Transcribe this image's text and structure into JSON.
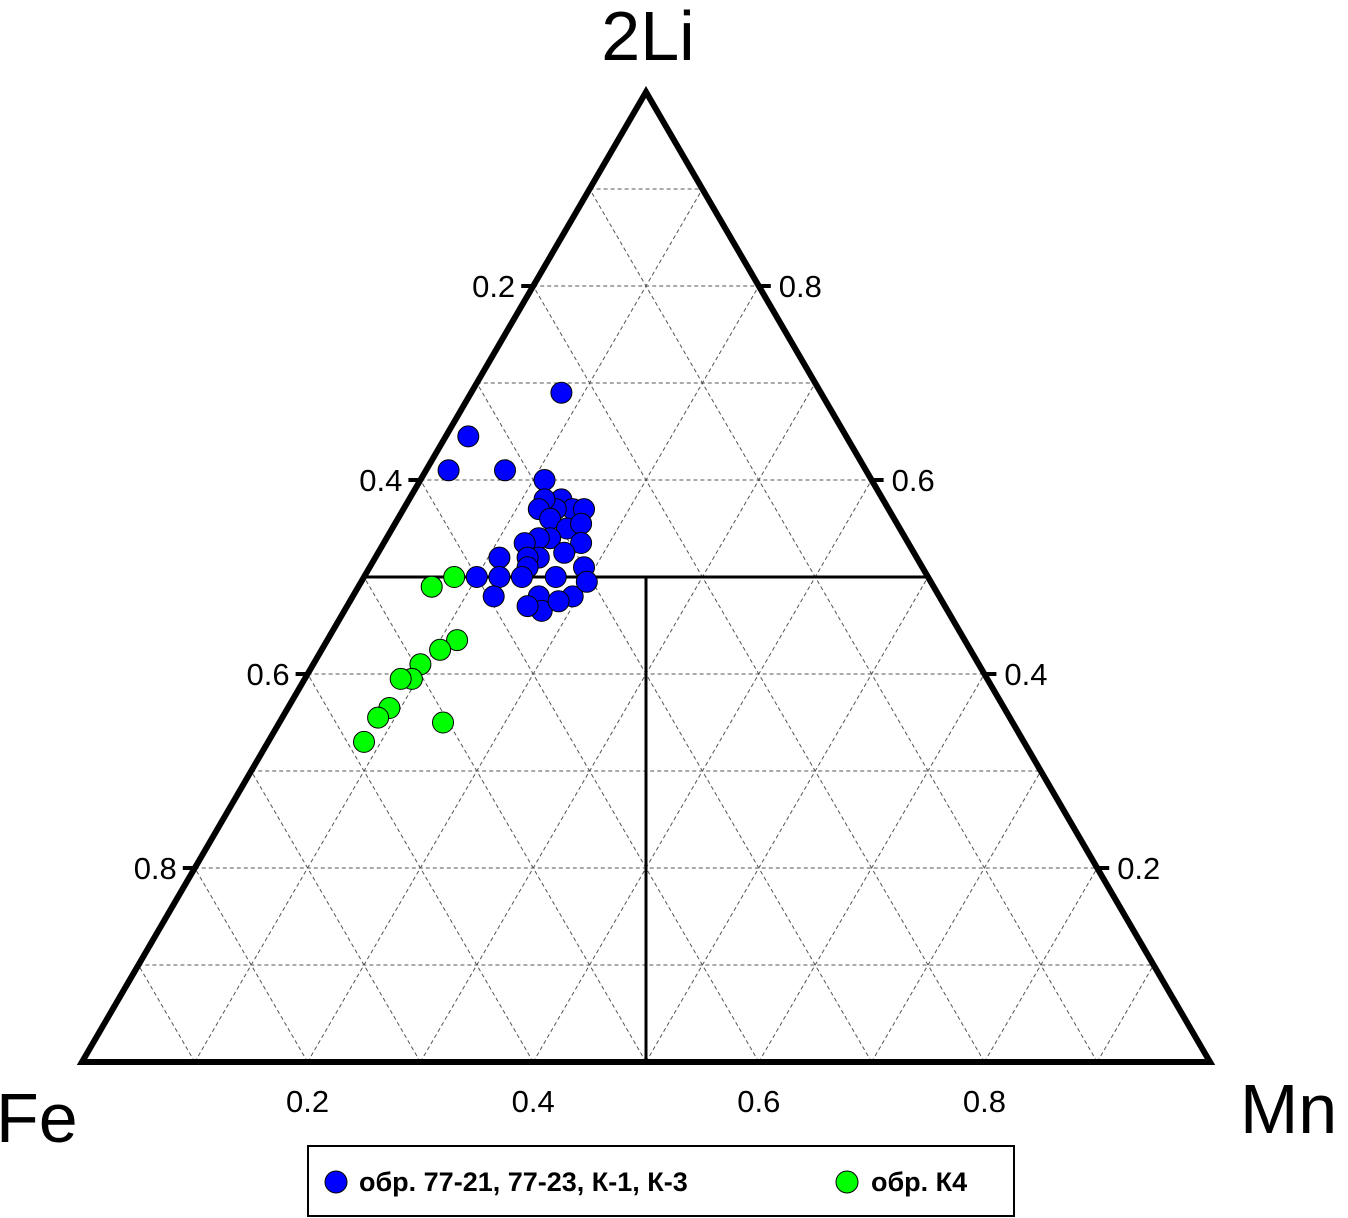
{
  "chart_data": {
    "type": "ternary-scatter",
    "vertices": {
      "top": "2Li",
      "left": "Fe",
      "right": "Mn"
    },
    "grid": true,
    "grid_step": 0.1,
    "tick_labels": [
      "0.2",
      "0.4",
      "0.6",
      "0.8"
    ],
    "divider_lines": [
      {
        "description": "constant 2Li",
        "value": 0.5
      },
      {
        "description": "Fe = Mn split",
        "value": 0.5
      }
    ],
    "legend_position": "bottom-center",
    "series": [
      {
        "name": "обр. 77-21, 77-23, К-1, К-3",
        "color": "#0000ff",
        "points": [
          {
            "fe": 0.23,
            "mn": 0.08,
            "li": 0.69
          },
          {
            "fe": 0.37,
            "mn": 0.02,
            "li": 0.61
          },
          {
            "fe": 0.32,
            "mn": 0.07,
            "li": 0.61
          },
          {
            "fe": 0.335,
            "mn": 0.02,
            "li": 0.645
          },
          {
            "fe": 0.29,
            "mn": 0.11,
            "li": 0.6
          },
          {
            "fe": 0.285,
            "mn": 0.135,
            "li": 0.58
          },
          {
            "fe": 0.28,
            "mn": 0.15,
            "li": 0.57
          },
          {
            "fe": 0.27,
            "mn": 0.16,
            "li": 0.57
          },
          {
            "fe": 0.295,
            "mn": 0.135,
            "li": 0.57
          },
          {
            "fe": 0.3,
            "mn": 0.12,
            "li": 0.58
          },
          {
            "fe": 0.31,
            "mn": 0.12,
            "li": 0.57
          },
          {
            "fe": 0.305,
            "mn": 0.135,
            "li": 0.56
          },
          {
            "fe": 0.295,
            "mn": 0.155,
            "li": 0.55
          },
          {
            "fe": 0.28,
            "mn": 0.165,
            "li": 0.555
          },
          {
            "fe": 0.315,
            "mn": 0.145,
            "li": 0.54
          },
          {
            "fe": 0.325,
            "mn": 0.135,
            "li": 0.54
          },
          {
            "fe": 0.34,
            "mn": 0.125,
            "li": 0.535
          },
          {
            "fe": 0.335,
            "mn": 0.145,
            "li": 0.52
          },
          {
            "fe": 0.345,
            "mn": 0.135,
            "li": 0.52
          },
          {
            "fe": 0.35,
            "mn": 0.14,
            "li": 0.51
          },
          {
            "fe": 0.36,
            "mn": 0.14,
            "li": 0.5
          },
          {
            "fe": 0.37,
            "mn": 0.11,
            "li": 0.52
          },
          {
            "fe": 0.355,
            "mn": 0.165,
            "li": 0.48
          },
          {
            "fe": 0.36,
            "mn": 0.175,
            "li": 0.465
          },
          {
            "fe": 0.325,
            "mn": 0.195,
            "li": 0.48
          },
          {
            "fe": 0.33,
            "mn": 0.17,
            "li": 0.5
          },
          {
            "fe": 0.34,
            "mn": 0.185,
            "li": 0.475
          },
          {
            "fe": 0.4,
            "mn": 0.1,
            "li": 0.5
          },
          {
            "fe": 0.38,
            "mn": 0.12,
            "li": 0.5
          },
          {
            "fe": 0.37,
            "mn": 0.16,
            "li": 0.47
          },
          {
            "fe": 0.3,
            "mn": 0.19,
            "li": 0.51
          },
          {
            "fe": 0.29,
            "mn": 0.175,
            "li": 0.535
          },
          {
            "fe": 0.31,
            "mn": 0.165,
            "li": 0.525
          },
          {
            "fe": 0.305,
            "mn": 0.2,
            "li": 0.495
          },
          {
            "fe": 0.395,
            "mn": 0.125,
            "li": 0.48
          }
        ]
      },
      {
        "name": "обр. К4",
        "color": "#00ff00",
        "points": [
          {
            "fe": 0.445,
            "mn": 0.065,
            "li": 0.49
          },
          {
            "fe": 0.42,
            "mn": 0.08,
            "li": 0.5
          },
          {
            "fe": 0.45,
            "mn": 0.115,
            "li": 0.435
          },
          {
            "fe": 0.47,
            "mn": 0.105,
            "li": 0.425
          },
          {
            "fe": 0.495,
            "mn": 0.095,
            "li": 0.41
          },
          {
            "fe": 0.51,
            "mn": 0.095,
            "li": 0.395
          },
          {
            "fe": 0.52,
            "mn": 0.085,
            "li": 0.395
          },
          {
            "fe": 0.505,
            "mn": 0.145,
            "li": 0.35
          },
          {
            "fe": 0.545,
            "mn": 0.09,
            "li": 0.365
          },
          {
            "fe": 0.56,
            "mn": 0.085,
            "li": 0.355
          },
          {
            "fe": 0.585,
            "mn": 0.085,
            "li": 0.33
          }
        ]
      }
    ]
  }
}
